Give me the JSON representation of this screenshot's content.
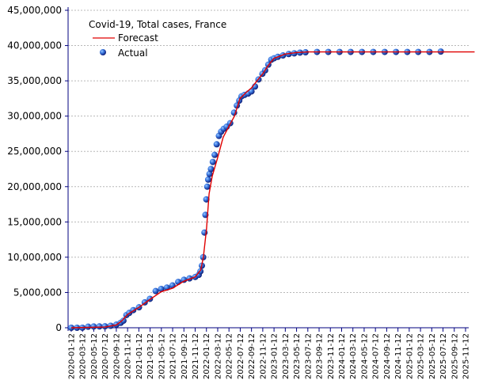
{
  "chart_data": {
    "type": "line",
    "title": "Covid-19, Total cases, France",
    "xlabel": "",
    "ylabel": "",
    "ylim": [
      0,
      45000000
    ],
    "y_ticks": [
      0,
      5000000,
      10000000,
      15000000,
      20000000,
      25000000,
      30000000,
      35000000,
      40000000,
      45000000
    ],
    "y_tick_labels": [
      "0",
      "5,000,000",
      "10,000,000",
      "15,000,000",
      "20,000,000",
      "25,000,000",
      "30,000,000",
      "35,000,000",
      "40,000,000",
      "45,000,000"
    ],
    "x_tick_labels": [
      "2020-01-12",
      "2020-03-12",
      "2020-05-12",
      "2020-07-12",
      "2020-09-12",
      "2020-11-12",
      "2021-01-12",
      "2021-03-12",
      "2021-05-12",
      "2021-07-12",
      "2021-09-12",
      "2021-11-12",
      "2022-01-12",
      "2022-03-12",
      "2022-05-12",
      "2022-07-12",
      "2022-09-12",
      "2022-11-12",
      "2023-01-12",
      "2023-03-12",
      "2023-05-12",
      "2023-07-12",
      "2023-09-12",
      "2023-11-12",
      "2024-01-12",
      "2024-03-12",
      "2024-05-12",
      "2024-07-12",
      "2024-09-12",
      "2024-11-12",
      "2025-01-12",
      "2025-03-12",
      "2025-05-12",
      "2025-07-12",
      "2025-09-12",
      "2025-11-12"
    ],
    "grid": true,
    "legend_position": "top-left",
    "colors": {
      "forecast": "#e00000",
      "actual": "#1a3fb0",
      "actual_highlight": "#6fa8ff",
      "axis": "#00007f",
      "grid": "#b8b8b8"
    },
    "series": [
      {
        "name": "Forecast",
        "style": "line",
        "x": [
          "2020-01-12",
          "2020-07-12",
          "2020-09-12",
          "2020-10-12",
          "2020-11-12",
          "2021-01-12",
          "2021-03-12",
          "2021-05-12",
          "2021-07-12",
          "2021-09-12",
          "2021-11-12",
          "2021-12-12",
          "2021-12-26",
          "2022-01-12",
          "2022-01-26",
          "2022-02-12",
          "2022-03-12",
          "2022-04-12",
          "2022-05-12",
          "2022-06-12",
          "2022-07-12",
          "2022-08-12",
          "2022-09-12",
          "2022-10-12",
          "2022-11-12",
          "2022-12-12",
          "2023-01-12",
          "2023-02-12",
          "2023-03-12",
          "2023-05-12",
          "2023-07-12",
          "2024-01-12",
          "2025-07-12",
          "2025-12-31"
        ],
        "y": [
          0,
          100000,
          400000,
          1000000,
          1900000,
          2900000,
          4000000,
          5100000,
          5600000,
          6600000,
          7200000,
          8200000,
          10000000,
          14000000,
          19000000,
          21500000,
          24000000,
          27000000,
          28500000,
          30000000,
          32500000,
          33300000,
          34000000,
          35000000,
          36000000,
          37200000,
          38200000,
          38500000,
          38800000,
          39000000,
          39100000,
          39100000,
          39100000,
          39100000
        ]
      },
      {
        "name": "Actual",
        "style": "scatter",
        "x": [
          "2020-01-12",
          "2020-02-12",
          "2020-03-12",
          "2020-04-12",
          "2020-05-12",
          "2020-06-12",
          "2020-07-12",
          "2020-08-12",
          "2020-09-12",
          "2020-10-05",
          "2020-10-20",
          "2020-11-05",
          "2020-11-20",
          "2020-12-12",
          "2021-01-12",
          "2021-02-12",
          "2021-03-12",
          "2021-04-12",
          "2021-05-12",
          "2021-06-12",
          "2021-07-12",
          "2021-08-12",
          "2021-09-12",
          "2021-10-12",
          "2021-11-12",
          "2021-12-01",
          "2021-12-10",
          "2021-12-18",
          "2021-12-25",
          "2022-01-01",
          "2022-01-06",
          "2022-01-11",
          "2022-01-16",
          "2022-01-21",
          "2022-01-28",
          "2022-02-05",
          "2022-02-15",
          "2022-02-25",
          "2022-03-08",
          "2022-03-20",
          "2022-04-01",
          "2022-04-15",
          "2022-05-01",
          "2022-05-20",
          "2022-06-10",
          "2022-06-25",
          "2022-07-08",
          "2022-07-20",
          "2022-08-05",
          "2022-08-25",
          "2022-09-12",
          "2022-10-01",
          "2022-10-20",
          "2022-11-10",
          "2022-11-25",
          "2022-12-12",
          "2022-12-28",
          "2023-01-12",
          "2023-02-01",
          "2023-03-01",
          "2023-04-01",
          "2023-05-01",
          "2023-06-01",
          "2023-07-01",
          "2023-09-01",
          "2023-11-01",
          "2024-01-01",
          "2024-03-01",
          "2024-05-01",
          "2024-07-01",
          "2024-09-01",
          "2024-11-01",
          "2025-01-01",
          "2025-03-01",
          "2025-05-01",
          "2025-07-01"
        ],
        "y": [
          0,
          0,
          5000,
          150000,
          180000,
          190000,
          210000,
          280000,
          450000,
          700000,
          1000000,
          1800000,
          2100000,
          2500000,
          2900000,
          3600000,
          4100000,
          5200000,
          5500000,
          5700000,
          6000000,
          6500000,
          6800000,
          7000000,
          7200000,
          7500000,
          8000000,
          8800000,
          10000000,
          13500000,
          16000000,
          18200000,
          20000000,
          21000000,
          21800000,
          22500000,
          23500000,
          24500000,
          26000000,
          27200000,
          27800000,
          28200000,
          28500000,
          29000000,
          30500000,
          31500000,
          32200000,
          32800000,
          33000000,
          33200000,
          33500000,
          34200000,
          35200000,
          36000000,
          36500000,
          37300000,
          38000000,
          38200000,
          38400000,
          38600000,
          38800000,
          38900000,
          39000000,
          39050000,
          39100000,
          39100000,
          39100000,
          39100000,
          39100000,
          39100000,
          39100000,
          39100000,
          39100000,
          39100000,
          39100000,
          39150000
        ]
      }
    ]
  }
}
